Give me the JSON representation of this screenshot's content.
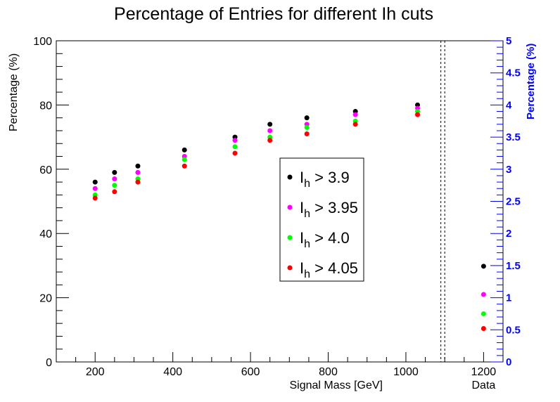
{
  "chart_data": {
    "type": "scatter",
    "title": "Percentage of Entries for different Ih cuts",
    "xlabel": "Signal Mass [GeV]",
    "ylabel": "Percentage (%)",
    "y2label": "Percentage (%)",
    "xlim": [
      100,
      1250
    ],
    "ylim": [
      0,
      100
    ],
    "y2lim": [
      0,
      5
    ],
    "xticks": [
      "200",
      "400",
      "600",
      "800",
      "1000",
      "1200"
    ],
    "xtick_values": [
      200,
      400,
      600,
      800,
      1000,
      1200
    ],
    "yticks": [
      "0",
      "20",
      "40",
      "60",
      "80",
      "100"
    ],
    "ytick_values": [
      0,
      20,
      40,
      60,
      80,
      100
    ],
    "y2ticks": [
      "0",
      "0.5",
      "1",
      "1.5",
      "2",
      "2.5",
      "3",
      "3.5",
      "4",
      "4.5",
      "5"
    ],
    "y2tick_values": [
      0,
      0.5,
      1,
      1.5,
      2,
      2.5,
      3,
      3.5,
      4,
      4.5,
      5
    ],
    "separator_x": [
      1090,
      1100
    ],
    "data_label": "Data",
    "data_label_x": 1200,
    "colors": {
      "right_axis": "#0000ff"
    },
    "series": [
      {
        "legend_base": "I",
        "legend_sub": "h",
        "legend_rest": " > 3.9",
        "color": "#000000",
        "x": [
          200,
          250,
          310,
          430,
          560,
          650,
          745,
          870,
          1030
        ],
        "y": [
          56,
          59,
          61,
          66,
          70,
          74,
          76,
          78,
          80
        ],
        "data_value": 1.49
      },
      {
        "legend_base": "I",
        "legend_sub": "h",
        "legend_rest": " > 3.95",
        "color": "#ff00ff",
        "x": [
          200,
          250,
          310,
          430,
          560,
          650,
          745,
          870,
          1030
        ],
        "y": [
          54,
          57,
          59,
          64,
          69,
          72,
          74,
          77,
          79
        ],
        "data_value": 1.05
      },
      {
        "legend_base": "I",
        "legend_sub": "h",
        "legend_rest": " > 4.0",
        "color": "#00ff00",
        "x": [
          200,
          250,
          310,
          430,
          560,
          650,
          745,
          870,
          1030
        ],
        "y": [
          52,
          55,
          57,
          63,
          67,
          70,
          73,
          75,
          78
        ],
        "data_value": 0.75
      },
      {
        "legend_base": "I",
        "legend_sub": "h",
        "legend_rest": " > 4.05",
        "color": "#ff0000",
        "x": [
          200,
          250,
          310,
          430,
          560,
          650,
          745,
          870,
          1030
        ],
        "y": [
          51,
          53,
          56,
          61,
          65,
          69,
          71,
          74,
          77
        ],
        "data_value": 0.52
      }
    ]
  }
}
